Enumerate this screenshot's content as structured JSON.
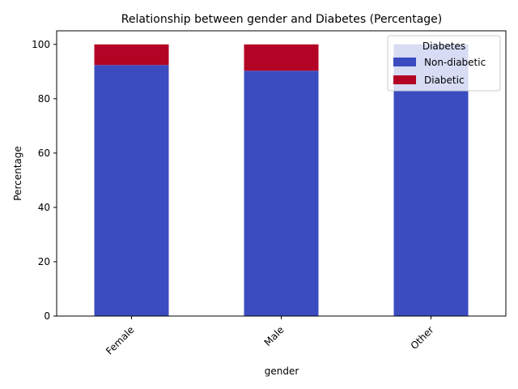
{
  "chart_data": {
    "type": "bar",
    "stacked": true,
    "title": "Relationship between gender and Diabetes (Percentage)",
    "xlabel": "gender",
    "ylabel": "Percentage",
    "categories": [
      "Female",
      "Male",
      "Other"
    ],
    "ylim": [
      0,
      105
    ],
    "yticks": [
      0,
      20,
      40,
      60,
      80,
      100
    ],
    "grid": false,
    "legend": {
      "title": "Diabetes",
      "placement": "top-right"
    },
    "series": [
      {
        "name": "Non-diabetic",
        "values": [
          92.4,
          90.3,
          100.0
        ],
        "color": "#3b4cc0"
      },
      {
        "name": "Diabetic",
        "values": [
          7.6,
          9.7,
          0.0
        ],
        "color": "#b40426"
      }
    ]
  }
}
